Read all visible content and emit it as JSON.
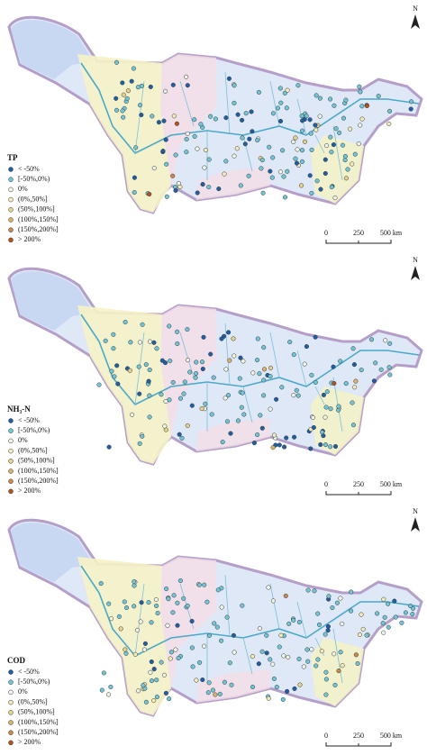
{
  "panels": [
    {
      "label": "TP",
      "north": "N",
      "scale": [
        "0",
        "250",
        "500 km"
      ],
      "legend": [
        {
          "label": "< -50%",
          "color": "#1f5fa6"
        },
        {
          "label": "[-50%,0%)",
          "color": "#6ec6d8"
        },
        {
          "label": "0%",
          "color": "#eef4e6"
        },
        {
          "label": "(0%,50%]",
          "color": "#f3ecb8"
        },
        {
          "label": "(50%,100%]",
          "color": "#e6d28c"
        },
        {
          "label": "(100%,150%]",
          "color": "#d9b36b"
        },
        {
          "label": "(150%,200%]",
          "color": "#c98a4a"
        },
        {
          "label": "> 200%",
          "color": "#b5541f"
        }
      ]
    },
    {
      "label": "NH₃-N",
      "north": "N",
      "scale": [
        "0",
        "250",
        "500 km"
      ],
      "legend": [
        {
          "label": "< -50%",
          "color": "#1f5fa6"
        },
        {
          "label": "[-50%,0%)",
          "color": "#6ec6d8"
        },
        {
          "label": "0%",
          "color": "#eef4e6"
        },
        {
          "label": "(0%,50%]",
          "color": "#f3ecb8"
        },
        {
          "label": "(50%,100%]",
          "color": "#e6d28c"
        },
        {
          "label": "(100%,150%]",
          "color": "#d9b36b"
        },
        {
          "label": "(150%,200%]",
          "color": "#c98a4a"
        },
        {
          "label": "> 200%",
          "color": "#b5541f"
        }
      ]
    },
    {
      "label": "COD",
      "north": "N",
      "scale": [
        "0",
        "250",
        "500 km"
      ],
      "legend": [
        {
          "label": "< -50%",
          "color": "#1f5fa6"
        },
        {
          "label": "[-50%,0%)",
          "color": "#6ec6d8"
        },
        {
          "label": "0%",
          "color": "#eef4e6"
        },
        {
          "label": "(0%,50%]",
          "color": "#f3ecb8"
        },
        {
          "label": "(50%,100%]",
          "color": "#e6d28c"
        },
        {
          "label": "(100%,150%]",
          "color": "#d9b36b"
        },
        {
          "label": "(150%,200%]",
          "color": "#c98a4a"
        },
        {
          "label": "> 200%",
          "color": "#b5541f"
        }
      ]
    }
  ]
}
